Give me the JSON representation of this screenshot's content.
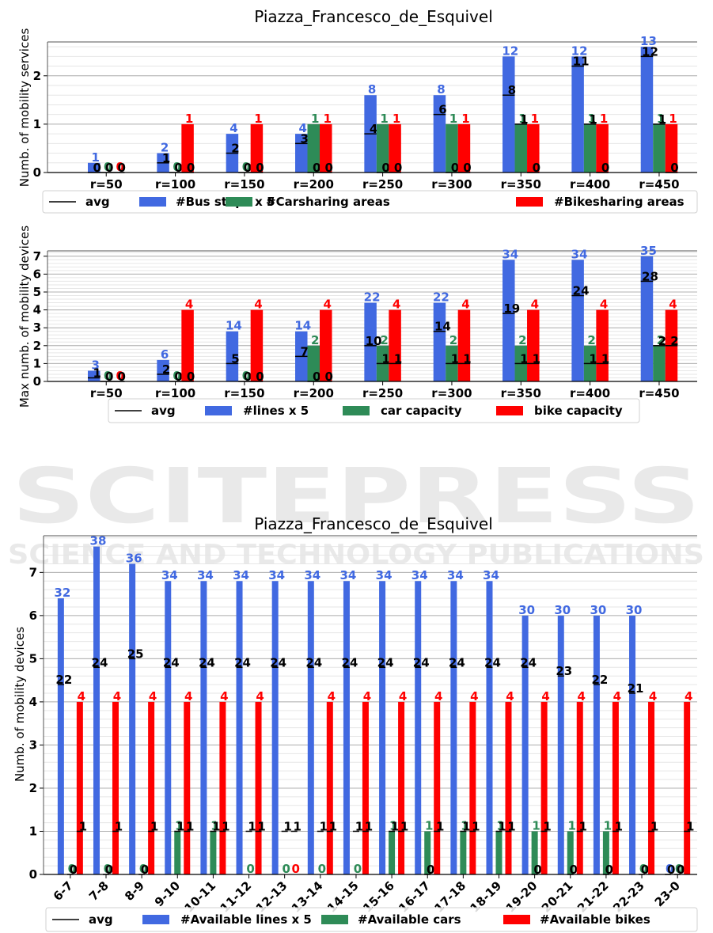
{
  "colors": {
    "lines": "#4169e1",
    "cars": "#2e8b57",
    "bikes": "#ff0000",
    "avg": "#000000"
  },
  "watermark": {
    "main": "SCITEPRESS",
    "sub": "SCIENCE AND TECHNOLOGY PUBLICATIONS"
  },
  "chart_data": [
    {
      "type": "bar",
      "title": "Piazza_Francesco_de_Esquivel",
      "xlabel": "",
      "ylabel": "Numb. of mobility services",
      "ylim": [
        0,
        2.7
      ],
      "yticks": [
        0,
        1,
        2
      ],
      "grid": true,
      "legend_position": "bottom",
      "categories": [
        "r=50",
        "r=100",
        "r=150",
        "r=200",
        "r=250",
        "r=300",
        "r=350",
        "r=400",
        "r=450"
      ],
      "series": [
        {
          "name": "#Bus stops x 5",
          "key": "lines",
          "values": [
            1,
            2,
            4,
            4,
            8,
            8,
            12,
            12,
            13
          ],
          "scale": 5,
          "avg": [
            0,
            1,
            2,
            3,
            4,
            6,
            8,
            11,
            12
          ]
        },
        {
          "name": "#Carsharing areas",
          "key": "cars",
          "values": [
            0,
            0,
            0,
            1,
            1,
            1,
            1,
            1,
            1
          ],
          "scale": 1,
          "avg": [
            0,
            0,
            0,
            0,
            0,
            0,
            1,
            1,
            1
          ]
        },
        {
          "name": "#Bikesharing areas",
          "key": "bikes",
          "values": [
            0,
            1,
            1,
            1,
            1,
            1,
            1,
            1,
            1
          ],
          "scale": 1,
          "avg": [
            0,
            0,
            0,
            0,
            0,
            0,
            0,
            0,
            0
          ]
        }
      ],
      "legend": [
        "avg",
        "#Bus stops x 5",
        "#Carsharing areas",
        "#Bikesharing areas"
      ]
    },
    {
      "type": "bar",
      "title": "",
      "xlabel": "",
      "ylabel": "Max numb. of mobility devices",
      "ylim": [
        0,
        7.3
      ],
      "yticks": [
        0,
        1,
        2,
        3,
        4,
        5,
        6,
        7
      ],
      "grid": true,
      "legend_position": "bottom",
      "categories": [
        "r=50",
        "r=100",
        "r=150",
        "r=200",
        "r=250",
        "r=300",
        "r=350",
        "r=400",
        "r=450"
      ],
      "series": [
        {
          "name": "#lines x 5",
          "key": "lines",
          "values": [
            3,
            6,
            14,
            14,
            22,
            22,
            34,
            34,
            35
          ],
          "scale": 5,
          "avg": [
            1,
            2,
            5,
            7,
            10,
            14,
            19,
            24,
            28
          ]
        },
        {
          "name": "car capacity",
          "key": "cars",
          "values": [
            0,
            0,
            0,
            2,
            2,
            2,
            2,
            2,
            2
          ],
          "scale": 1,
          "avg": [
            0,
            0,
            0,
            0,
            1,
            1,
            1,
            1,
            2
          ]
        },
        {
          "name": "bike capacity",
          "key": "bikes",
          "values": [
            0,
            4,
            4,
            4,
            4,
            4,
            4,
            4,
            4
          ],
          "scale": 1,
          "avg": [
            0,
            0,
            0,
            0,
            1,
            1,
            1,
            1,
            2
          ]
        }
      ],
      "legend": [
        "avg",
        "#lines x 5",
        "car capacity",
        "bike capacity"
      ]
    },
    {
      "type": "bar",
      "title": "Piazza_Francesco_de_Esquivel",
      "xlabel": "",
      "ylabel": "Numb. of mobility devices",
      "ylim": [
        0,
        7.85
      ],
      "yticks": [
        0,
        1,
        2,
        3,
        4,
        5,
        6,
        7
      ],
      "grid": true,
      "legend_position": "bottom",
      "categories": [
        "6-7",
        "7-8",
        "8-9",
        "9-10",
        "10-11",
        "11-12",
        "12-13",
        "13-14",
        "14-15",
        "15-16",
        "16-17",
        "17-18",
        "18-19",
        "19-20",
        "20-21",
        "21-22",
        "22-23",
        "23-0"
      ],
      "series": [
        {
          "name": "#Available lines x 5",
          "key": "lines",
          "values": [
            32,
            38,
            36,
            34,
            34,
            34,
            34,
            34,
            34,
            34,
            34,
            34,
            34,
            30,
            30,
            30,
            30,
            0
          ],
          "scale": 5,
          "avg": [
            22,
            24,
            25,
            24,
            24,
            24,
            24,
            24,
            24,
            24,
            24,
            24,
            24,
            24,
            23,
            22,
            21,
            0
          ]
        },
        {
          "name": "#Available cars",
          "key": "cars",
          "values": [
            0,
            0,
            0,
            1,
            1,
            0,
            0,
            0,
            0,
            1,
            1,
            1,
            1,
            1,
            1,
            1,
            0,
            0
          ],
          "scale": 1,
          "avg": [
            0,
            0,
            0,
            1,
            1,
            1,
            1,
            1,
            1,
            1,
            0,
            1,
            1,
            0,
            0,
            0,
            0,
            0
          ]
        },
        {
          "name": "#Available bikes",
          "key": "bikes",
          "values": [
            4,
            4,
            4,
            4,
            4,
            4,
            0,
            4,
            4,
            4,
            4,
            4,
            4,
            4,
            4,
            4,
            4,
            4
          ],
          "scale": 1,
          "avg": [
            1,
            1,
            1,
            1,
            1,
            1,
            1,
            1,
            1,
            1,
            1,
            1,
            1,
            1,
            1,
            1,
            1,
            1
          ]
        }
      ],
      "legend": [
        "avg",
        "#Available lines x 5",
        "#Available cars",
        "#Available bikes"
      ]
    }
  ]
}
